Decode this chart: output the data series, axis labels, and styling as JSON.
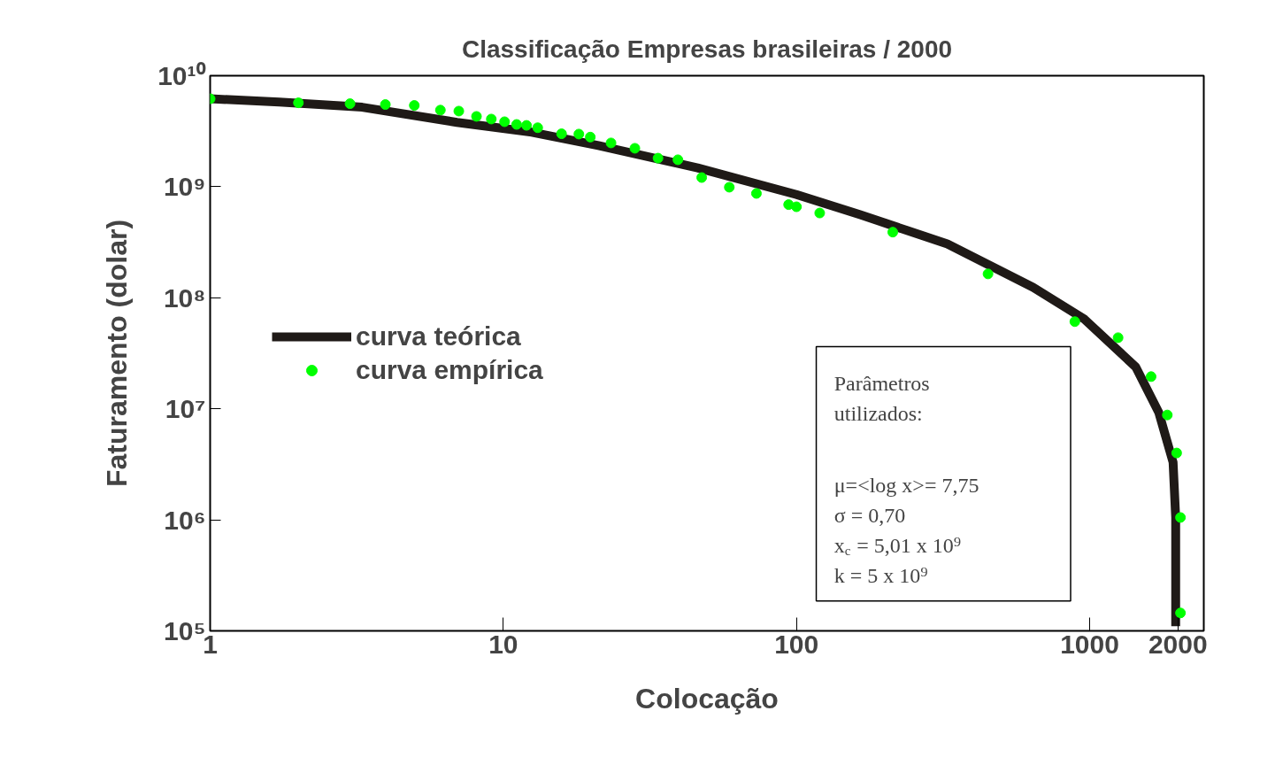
{
  "chart_data": {
    "type": "line",
    "title": "Classificação Empresas brasileiras / 2000",
    "xlabel": "Colocação",
    "ylabel": "Faturamento (dolar)",
    "log": "xy",
    "xlim": [
      1,
      2450
    ],
    "ylim": [
      100000,
      10000000000
    ],
    "xticks": [
      1,
      10,
      100,
      1000,
      2000
    ],
    "yticks": [
      {
        "value": 100000,
        "label": "10⁵"
      },
      {
        "value": 1000000,
        "label": "10⁶"
      },
      {
        "value": 10000000,
        "label": "10⁷"
      },
      {
        "value": 100000000,
        "label": "10⁸"
      },
      {
        "value": 1000000000,
        "label": "10⁹"
      },
      {
        "value": 10000000000,
        "label": "10¹⁰"
      }
    ],
    "grid": false,
    "legend": "left",
    "series": [
      {
        "name": "curva teórica",
        "color": "#1f1a17",
        "line_style": "solid",
        "x": [
          1,
          1.72,
          3.3,
          6.95,
          12.5,
          21.1,
          46,
          100,
          165,
          327,
          641,
          960,
          1436,
          1720,
          1925,
          1965,
          1965
        ],
        "values": [
          6200000000,
          5800000000,
          5200000000,
          3800000000,
          3100000000,
          2350000000,
          1480000000,
          850000000,
          560000000,
          305000000,
          124000000,
          64000000,
          23800000,
          9300000,
          3300000,
          1050000,
          110000
        ]
      },
      {
        "name": "curva empírica",
        "type": "scatter",
        "marker": "circle",
        "color": "#00ff00",
        "x": [
          1,
          2,
          3,
          3.96,
          4.97,
          6.1,
          7.05,
          8.1,
          9.1,
          10.1,
          11.1,
          12,
          13.1,
          15.8,
          18.1,
          19.8,
          23.3,
          28.1,
          33.7,
          39.4,
          47.5,
          59,
          73,
          94,
          100,
          120,
          213,
          450,
          890,
          1250,
          1620,
          1840,
          1980,
          2040,
          2040
        ],
        "values": [
          6200000000,
          5700000000,
          5600000000,
          5500000000,
          5400000000,
          4900000000,
          4800000000,
          4300000000,
          4070000000,
          3850000000,
          3640000000,
          3570000000,
          3400000000,
          3000000000,
          2980000000,
          2800000000,
          2480000000,
          2220000000,
          1810000000,
          1750000000,
          1210000000,
          990000000,
          870000000,
          690000000,
          660000000,
          580000000,
          390000000,
          164000000,
          61000000,
          43700000,
          19500000,
          8800000,
          4000000,
          1050000,
          145000
        ]
      }
    ],
    "annotations": [
      "Parâmetros",
      "utilizados:",
      "μ=<log x>= 7,75",
      "σ = 0,70",
      "x$_{c}$ = 5,01 x 10⁹",
      "k = 5 x 10⁹"
    ]
  }
}
